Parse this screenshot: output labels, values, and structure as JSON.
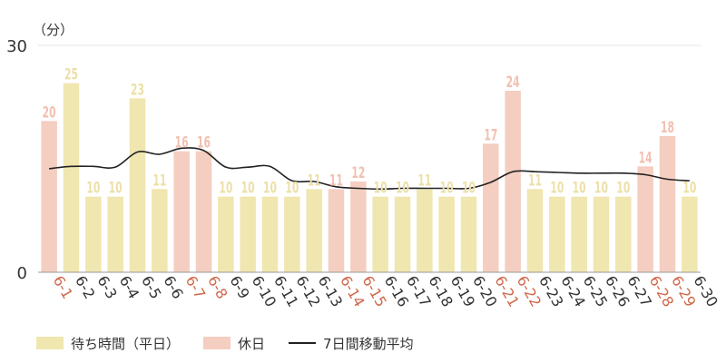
{
  "chart_data": {
    "type": "bar",
    "unit_label": "（分）",
    "ylim": [
      0,
      30
    ],
    "y_ticks": [
      "0",
      "30"
    ],
    "grid": true,
    "categories": [
      "6-1",
      "6-2",
      "6-3",
      "6-4",
      "6-5",
      "6-6",
      "6-7",
      "6-8",
      "6-9",
      "6-10",
      "6-11",
      "6-12",
      "6-13",
      "6-14",
      "6-15",
      "6-16",
      "6-17",
      "6-18",
      "6-19",
      "6-20",
      "6-21",
      "6-22",
      "6-23",
      "6-24",
      "6-25",
      "6-26",
      "6-27",
      "6-28",
      "6-29",
      "6-30"
    ],
    "values": [
      20,
      25,
      10,
      10,
      23,
      11,
      16,
      16,
      10,
      10,
      10,
      10,
      11,
      11,
      12,
      10,
      10,
      11,
      10,
      10,
      17,
      24,
      11,
      10,
      10,
      10,
      10,
      14,
      18,
      10
    ],
    "holiday": [
      true,
      false,
      false,
      false,
      false,
      false,
      true,
      true,
      false,
      false,
      false,
      false,
      false,
      true,
      true,
      false,
      false,
      false,
      false,
      false,
      true,
      true,
      false,
      false,
      false,
      false,
      false,
      true,
      true,
      false
    ],
    "moving_average": [
      13.7,
      14.0,
      14.0,
      13.9,
      15.9,
      15.6,
      16.4,
      16.1,
      13.9,
      13.9,
      14.0,
      12.1,
      12.0,
      11.3,
      11.1,
      11.0,
      11.1,
      11.1,
      11.1,
      11.1,
      11.9,
      13.3,
      13.3,
      13.2,
      13.1,
      13.1,
      13.1,
      12.9,
      12.3,
      12.1
    ],
    "legend": {
      "weekday": "待ち時間（平日）",
      "holiday": "休日",
      "moving_average": "7日間移動平均"
    },
    "colors": {
      "weekday": "#f0e6b0",
      "holiday": "#f4cec1",
      "weekday_label": "#ece0a8",
      "holiday_label": "#f2c0b0",
      "holiday_tick": "#d0684a",
      "weekday_tick": "#333333",
      "line": "#222222",
      "axis": "#999999",
      "grid": "#e4e4e4"
    }
  }
}
